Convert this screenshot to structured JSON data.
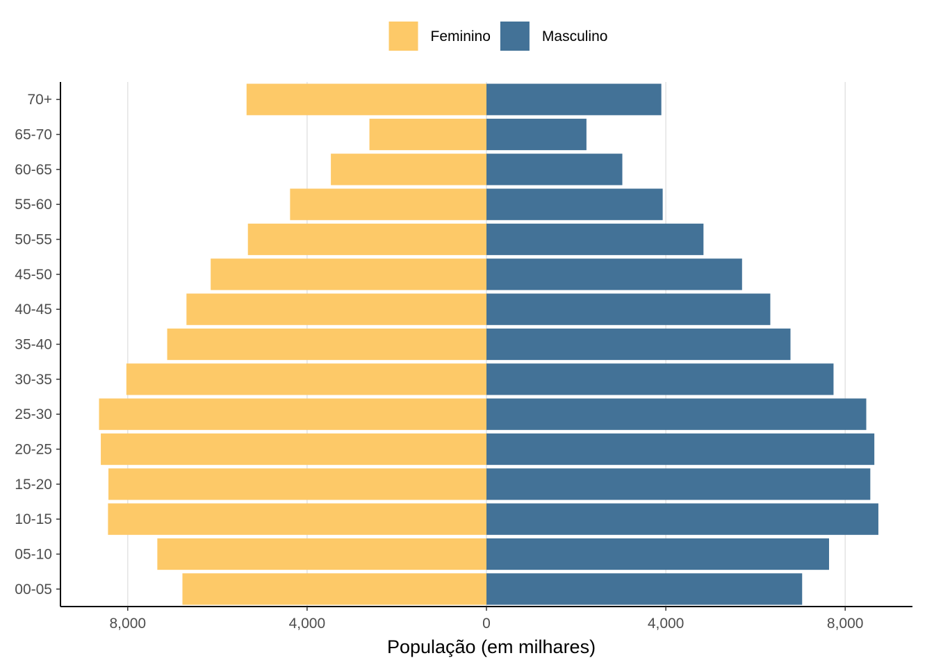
{
  "chart_data": {
    "type": "bar",
    "orientation": "horizontal",
    "subtype": "population-pyramid",
    "categories": [
      "00-05",
      "05-10",
      "10-15",
      "15-20",
      "20-25",
      "25-30",
      "30-35",
      "35-40",
      "40-45",
      "45-50",
      "50-55",
      "55-60",
      "60-65",
      "65-70",
      "70+"
    ],
    "series": [
      {
        "name": "Feminino",
        "color": "#fdc968",
        "side": "left",
        "values": [
          6780,
          7340,
          8440,
          8430,
          8600,
          8640,
          8030,
          7120,
          6690,
          6150,
          5320,
          4380,
          3470,
          2610,
          5350
        ]
      },
      {
        "name": "Masculino",
        "color": "#437297",
        "side": "right",
        "values": [
          7040,
          7640,
          8740,
          8560,
          8650,
          8470,
          7740,
          6780,
          6330,
          5700,
          4840,
          3930,
          3030,
          2230,
          3900
        ]
      }
    ],
    "xlabel": "População (em milhares)",
    "ylabel": "",
    "xlim": [
      -9500,
      9500
    ],
    "xticks": [
      -8000,
      -4000,
      0,
      4000,
      8000
    ],
    "xtick_labels": [
      "8,000",
      "4,000",
      "0",
      "4,000",
      "8,000"
    ],
    "grid": "vertical-major",
    "legend_position": "top"
  }
}
